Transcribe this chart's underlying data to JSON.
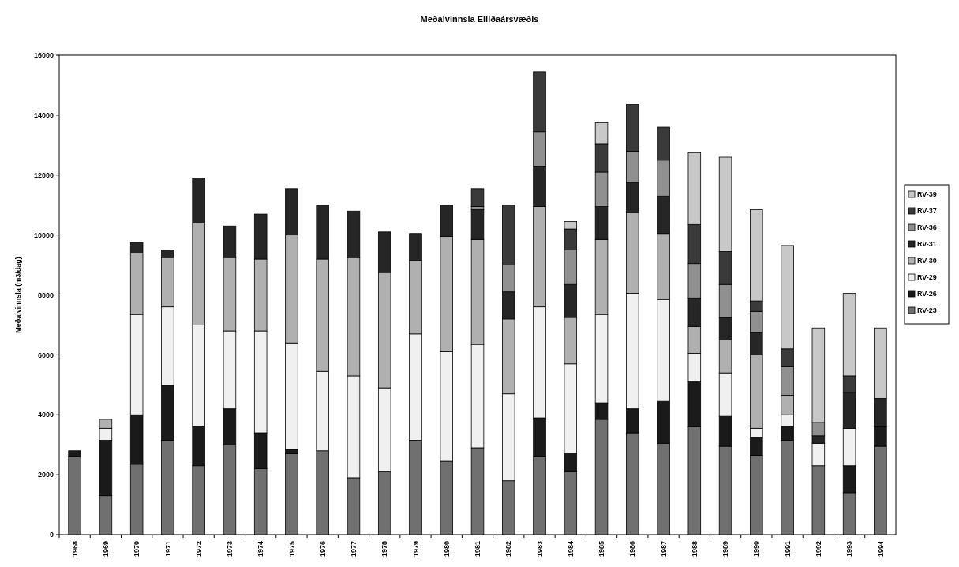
{
  "chart_data": {
    "type": "bar",
    "title": "Meðalvinnsla Elliðaársvæðis",
    "ylabel": "Meðalvinnsla (m3/dag)",
    "stacked": true,
    "legend": "right",
    "grid": false,
    "categories": [
      "1968",
      "1969",
      "1970",
      "1971",
      "1972",
      "1973",
      "1974",
      "1975",
      "1976",
      "1977",
      "1978",
      "1979",
      "1980",
      "1981",
      "1982",
      "1983",
      "1984",
      "1985",
      "1986",
      "1987",
      "1988",
      "1989",
      "1990",
      "1991",
      "1992",
      "1993",
      "1994"
    ],
    "ylim": [
      0,
      16000
    ],
    "yticks": [
      0,
      2000,
      4000,
      6000,
      8000,
      10000,
      12000,
      14000,
      16000
    ],
    "series": [
      {
        "name": "RV-23",
        "color": "#707070",
        "values": [
          2600,
          1300,
          2350,
          3150,
          2300,
          3000,
          2200,
          2700,
          2800,
          1900,
          2100,
          3150,
          2450,
          2900,
          1800,
          2600,
          2100,
          3850,
          3400,
          3050,
          3600,
          2950,
          2650,
          3150,
          2300,
          1400,
          2950
        ]
      },
      {
        "name": "RV-26",
        "color": "#1a1a1a",
        "values": [
          200,
          1850,
          1650,
          1830,
          1300,
          1200,
          1200,
          150,
          0,
          0,
          0,
          0,
          0,
          0,
          0,
          1300,
          600,
          550,
          800,
          1400,
          1500,
          1000,
          600,
          450,
          0,
          900,
          650
        ]
      },
      {
        "name": "RV-29",
        "color": "#f0f0f0",
        "values": [
          0,
          400,
          3350,
          2620,
          3400,
          2600,
          3400,
          3550,
          2650,
          3400,
          2800,
          3550,
          3650,
          3450,
          2900,
          3700,
          3000,
          2950,
          3850,
          3400,
          950,
          1450,
          300,
          400,
          750,
          1250,
          0
        ]
      },
      {
        "name": "RV-30",
        "color": "#b0b0b0",
        "values": [
          0,
          300,
          2050,
          1650,
          3400,
          2450,
          2400,
          3600,
          3750,
          3950,
          3850,
          2450,
          3850,
          3500,
          2500,
          3350,
          1550,
          2500,
          2700,
          2200,
          900,
          1100,
          2450,
          650,
          0,
          0,
          0
        ]
      },
      {
        "name": "RV-31",
        "color": "#262626",
        "values": [
          0,
          0,
          350,
          250,
          1500,
          1050,
          1500,
          1550,
          1800,
          1550,
          1350,
          900,
          1050,
          1000,
          900,
          1350,
          1100,
          1100,
          1000,
          1250,
          950,
          750,
          750,
          0,
          250,
          1200,
          950
        ]
      },
      {
        "name": "RV-36",
        "color": "#909090",
        "values": [
          0,
          0,
          0,
          0,
          0,
          0,
          0,
          0,
          0,
          0,
          0,
          0,
          0,
          100,
          900,
          1150,
          1150,
          1150,
          1050,
          1200,
          1150,
          1100,
          700,
          950,
          450,
          0,
          0
        ]
      },
      {
        "name": "RV-37",
        "color": "#3a3a3a",
        "values": [
          0,
          0,
          0,
          0,
          0,
          0,
          0,
          0,
          0,
          0,
          0,
          0,
          0,
          600,
          2000,
          2000,
          700,
          950,
          1550,
          1100,
          1300,
          1100,
          350,
          600,
          0,
          550,
          0
        ]
      },
      {
        "name": "RV-39",
        "color": "#c8c8c8",
        "values": [
          0,
          0,
          0,
          0,
          0,
          0,
          0,
          0,
          0,
          0,
          0,
          0,
          0,
          0,
          0,
          0,
          250,
          700,
          0,
          0,
          2400,
          3150,
          3050,
          3450,
          3150,
          2750,
          2350
        ]
      }
    ]
  }
}
